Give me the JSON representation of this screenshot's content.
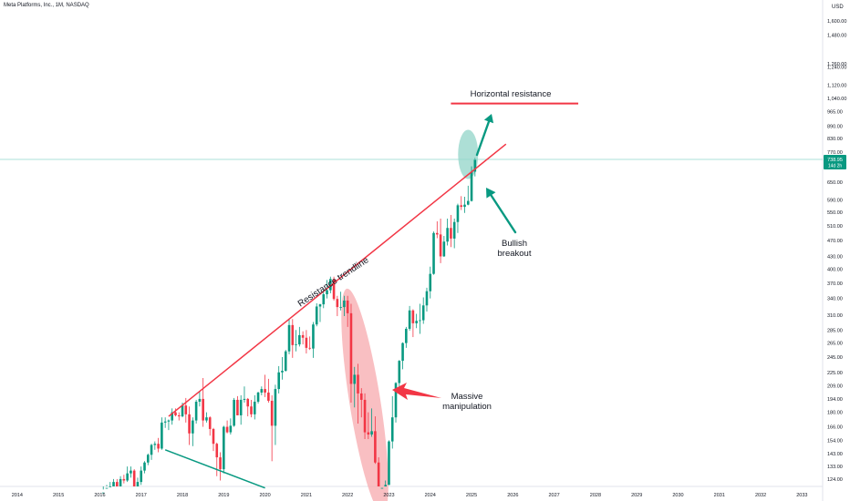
{
  "header": {
    "symbol_title": "Meta Platforms, Inc., 1M, NASDAQ",
    "currency": "USD"
  },
  "colors": {
    "up": "#089981",
    "down": "#f23645",
    "trendline": "#f23645",
    "support": "#089981",
    "arrow_green": "#089981",
    "arrow_red": "#f23645",
    "ellipse_red": "#f7a9ad",
    "ellipse_green": "#5bbfae",
    "price_line": "#8fd8cc"
  },
  "price_badge": {
    "price": "738.95",
    "countdown": "14d 2h"
  },
  "chart_data": {
    "type": "candlestick",
    "interval": "1M",
    "scale": "log",
    "ylim": [
      119,
      1800
    ],
    "x_range": [
      "2013-08",
      "2033-07"
    ],
    "x_ticks": [
      "2014",
      "2015",
      "2016",
      "2017",
      "2018",
      "2019",
      "2020",
      "2021",
      "2022",
      "2023",
      "2024",
      "2025",
      "2026",
      "2027",
      "2028",
      "2029",
      "2030",
      "2031",
      "2032",
      "2033"
    ],
    "y_ticks": [
      "1,600.00",
      "1,480.00",
      "1,260.00",
      "1,240.00",
      "1,120.00",
      "1,040.00",
      "965.00",
      "890.00",
      "830.00",
      "770.00",
      "650.00",
      "590.00",
      "550.00",
      "510.00",
      "470.00",
      "430.00",
      "400.00",
      "370.00",
      "340.00",
      "310.00",
      "285.00",
      "265.00",
      "245.00",
      "225.00",
      "209.00",
      "194.00",
      "180.00",
      "166.00",
      "154.00",
      "143.00",
      "133.00",
      "124.00"
    ],
    "candles": [
      [
        "2016-02",
        112,
        117,
        108,
        115
      ],
      [
        "2016-03",
        115,
        120,
        112,
        118
      ],
      [
        "2016-04",
        118,
        122,
        115,
        119
      ],
      [
        "2016-05",
        119,
        124,
        116,
        122
      ],
      [
        "2016-06",
        122,
        124,
        115,
        116
      ],
      [
        "2016-07",
        116,
        126,
        114,
        124
      ],
      [
        "2016-08",
        124,
        127,
        121,
        123
      ],
      [
        "2016-09",
        123,
        133,
        122,
        128
      ],
      [
        "2016-10",
        128,
        133,
        125,
        130
      ],
      [
        "2016-11",
        130,
        131,
        118,
        119
      ],
      [
        "2016-12",
        119,
        125,
        117,
        122
      ],
      [
        "2017-01",
        122,
        133,
        120,
        130
      ],
      [
        "2017-02",
        130,
        137,
        128,
        136
      ],
      [
        "2017-03",
        136,
        143,
        134,
        142
      ],
      [
        "2017-04",
        142,
        151,
        138,
        150
      ],
      [
        "2017-05",
        150,
        153,
        146,
        151
      ],
      [
        "2017-06",
        151,
        156,
        144,
        147
      ],
      [
        "2017-07",
        147,
        175,
        146,
        170
      ],
      [
        "2017-08",
        170,
        175,
        165,
        171
      ],
      [
        "2017-09",
        171,
        173,
        163,
        172
      ],
      [
        "2017-10",
        172,
        184,
        168,
        180
      ],
      [
        "2017-11",
        180,
        184,
        176,
        177
      ],
      [
        "2017-12",
        177,
        180,
        172,
        176
      ],
      [
        "2018-01",
        176,
        190,
        175,
        187
      ],
      [
        "2018-02",
        187,
        195,
        170,
        178
      ],
      [
        "2018-03",
        178,
        186,
        150,
        160
      ],
      [
        "2018-04",
        160,
        175,
        149,
        172
      ],
      [
        "2018-05",
        172,
        193,
        169,
        191
      ],
      [
        "2018-06",
        191,
        203,
        186,
        194
      ],
      [
        "2018-07",
        194,
        218,
        166,
        172
      ],
      [
        "2018-08",
        172,
        180,
        170,
        175
      ],
      [
        "2018-09",
        175,
        176,
        158,
        164
      ],
      [
        "2018-10",
        164,
        165,
        145,
        151
      ],
      [
        "2018-11",
        151,
        152,
        126,
        140
      ],
      [
        "2018-12",
        140,
        144,
        123,
        131
      ],
      [
        "2019-01",
        131,
        167,
        128,
        166
      ],
      [
        "2019-02",
        166,
        172,
        160,
        161
      ],
      [
        "2019-03",
        161,
        174,
        159,
        167
      ],
      [
        "2019-04",
        167,
        195,
        166,
        193
      ],
      [
        "2019-05",
        193,
        197,
        177,
        177
      ],
      [
        "2019-06",
        177,
        198,
        168,
        193
      ],
      [
        "2019-07",
        193,
        208,
        190,
        194
      ],
      [
        "2019-08",
        194,
        195,
        176,
        186
      ],
      [
        "2019-09",
        186,
        193,
        175,
        178
      ],
      [
        "2019-10",
        178,
        198,
        173,
        191
      ],
      [
        "2019-11",
        191,
        202,
        189,
        201
      ],
      [
        "2019-12",
        201,
        208,
        198,
        205
      ],
      [
        "2020-01",
        205,
        222,
        196,
        201
      ],
      [
        "2020-02",
        201,
        217,
        190,
        192
      ],
      [
        "2020-03",
        192,
        198,
        137,
        167
      ],
      [
        "2020-04",
        167,
        210,
        150,
        205
      ],
      [
        "2020-05",
        205,
        233,
        200,
        225
      ],
      [
        "2020-06",
        225,
        245,
        216,
        227
      ],
      [
        "2020-07",
        227,
        255,
        226,
        253
      ],
      [
        "2020-08",
        253,
        304,
        249,
        293
      ],
      [
        "2020-09",
        293,
        303,
        244,
        262
      ],
      [
        "2020-10",
        262,
        285,
        253,
        263
      ],
      [
        "2020-11",
        263,
        290,
        260,
        277
      ],
      [
        "2020-12",
        277,
        283,
        263,
        273
      ],
      [
        "2021-01",
        273,
        285,
        250,
        258
      ],
      [
        "2021-02",
        258,
        275,
        255,
        257
      ],
      [
        "2021-03",
        257,
        298,
        244,
        294
      ],
      [
        "2021-04",
        294,
        331,
        291,
        325
      ],
      [
        "2021-05",
        325,
        330,
        298,
        329
      ],
      [
        "2021-06",
        329,
        358,
        322,
        348
      ],
      [
        "2021-07",
        348,
        377,
        340,
        356
      ],
      [
        "2021-08",
        356,
        384,
        350,
        379
      ],
      [
        "2021-09",
        379,
        384,
        336,
        339
      ],
      [
        "2021-10",
        339,
        345,
        308,
        324
      ],
      [
        "2021-11",
        324,
        353,
        318,
        324
      ],
      [
        "2021-12",
        324,
        345,
        308,
        336
      ],
      [
        "2022-01",
        336,
        345,
        290,
        313
      ],
      [
        "2022-02",
        313,
        330,
        190,
        211
      ],
      [
        "2022-03",
        211,
        232,
        185,
        222
      ],
      [
        "2022-04",
        222,
        236,
        169,
        200
      ],
      [
        "2022-05",
        200,
        206,
        175,
        193
      ],
      [
        "2022-06",
        193,
        200,
        155,
        161
      ],
      [
        "2022-07",
        161,
        180,
        155,
        159
      ],
      [
        "2022-08",
        159,
        184,
        157,
        162
      ],
      [
        "2022-09",
        162,
        176,
        135,
        136
      ],
      [
        "2022-10",
        136,
        140,
        92,
        93
      ],
      [
        "2022-11",
        93,
        119,
        88,
        118
      ],
      [
        "2022-12",
        118,
        123,
        111,
        120
      ],
      [
        "2023-01",
        120,
        154,
        120,
        153
      ],
      [
        "2023-02",
        153,
        197,
        147,
        175
      ],
      [
        "2023-03",
        175,
        213,
        170,
        212
      ],
      [
        "2023-04",
        212,
        241,
        207,
        240
      ],
      [
        "2023-05",
        240,
        266,
        229,
        265
      ],
      [
        "2023-06",
        265,
        290,
        258,
        287
      ],
      [
        "2023-07",
        287,
        326,
        284,
        318
      ],
      [
        "2023-08",
        318,
        320,
        274,
        296
      ],
      [
        "2023-09",
        296,
        312,
        288,
        300
      ],
      [
        "2023-10",
        300,
        330,
        279,
        301
      ],
      [
        "2023-11",
        301,
        342,
        295,
        327
      ],
      [
        "2023-12",
        327,
        361,
        316,
        354
      ],
      [
        "2024-01",
        354,
        406,
        340,
        390
      ],
      [
        "2024-02",
        390,
        494,
        388,
        490
      ],
      [
        "2024-03",
        490,
        523,
        476,
        486
      ],
      [
        "2024-04",
        486,
        531,
        414,
        430
      ],
      [
        "2024-05",
        430,
        482,
        429,
        467
      ],
      [
        "2024-06",
        467,
        531,
        457,
        504
      ],
      [
        "2024-07",
        504,
        542,
        453,
        475
      ],
      [
        "2024-08",
        475,
        531,
        450,
        521
      ],
      [
        "2024-09",
        521,
        577,
        490,
        572
      ],
      [
        "2024-10",
        572,
        602,
        557,
        567
      ],
      [
        "2024-11",
        567,
        600,
        548,
        574
      ],
      [
        "2024-12",
        574,
        638,
        572,
        586
      ],
      [
        "2025-01",
        586,
        711,
        584,
        690
      ],
      [
        "2025-02",
        690,
        745,
        672,
        739
      ]
    ],
    "last_price": 738.95,
    "annotations": [
      {
        "kind": "trendline",
        "label": "Resistance trendline",
        "from": [
          "2017-09",
          176
        ],
        "to": [
          "2025-11",
          805
        ]
      },
      {
        "kind": "support_line",
        "from": [
          "2017-08",
          146
        ],
        "to": [
          "2020-01",
          118
        ]
      },
      {
        "kind": "horizontal_line",
        "label": "Horizontal resistance",
        "from": [
          "2024-07",
          1010
        ],
        "to": [
          "2027-08",
          1010
        ]
      },
      {
        "kind": "text",
        "label": "Bullish breakout"
      },
      {
        "kind": "text",
        "label": "Massive manipulation"
      }
    ]
  },
  "labels": {
    "resistance_trendline": "Resistance trendline",
    "horizontal_resistance": "Horizontal resistance",
    "bullish_line1": "Bullish",
    "bullish_line2": "breakout",
    "massive_line1": "Massive",
    "massive_line2": "manipulation"
  }
}
